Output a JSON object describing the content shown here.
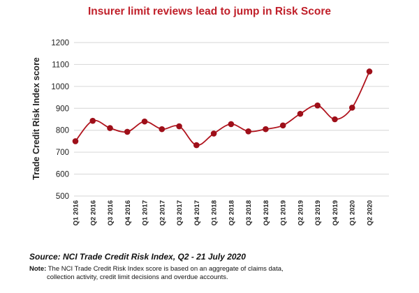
{
  "chart_data": {
    "type": "line",
    "title": "Insurer limit reviews lead to jump in Risk Score",
    "xlabel": "",
    "ylabel": "Trade Credit Risk Index score",
    "ylim": [
      500,
      1200
    ],
    "yticks": [
      500,
      600,
      700,
      800,
      900,
      1000,
      1100,
      1200
    ],
    "grid": true,
    "smooth": true,
    "categories": [
      "Q1 2016",
      "Q2 2016",
      "Q3 2016",
      "Q4 2016",
      "Q1 2017",
      "Q2 2017",
      "Q3 2017",
      "Q4 2017",
      "Q1 2018",
      "Q2 2018",
      "Q3 2018",
      "Q4 2018",
      "Q1 2019",
      "Q2 2019",
      "Q3 2019",
      "Q4 2019",
      "Q1 2020",
      "Q2 2020"
    ],
    "series": [
      {
        "values": [
          750,
          843,
          810,
          793,
          840,
          805,
          818,
          732,
          785,
          828,
          795,
          805,
          822,
          875,
          913,
          850,
          903,
          1068
        ]
      }
    ]
  },
  "colors": {
    "title": "#c0202a",
    "line": "#b0131d",
    "marker": "#9e0f19",
    "grid": "#d6d6d6",
    "axis_text": "#222222"
  },
  "source_text": "Source:  NCI Trade Credit Risk Index, Q2 - 21 July 2020",
  "note": {
    "label": "Note:",
    "line1": "The NCI Trade Credit Risk Index score is based on an aggregate of claims data,",
    "line2": "collection activity, credit limit decisions and overdue accounts."
  }
}
